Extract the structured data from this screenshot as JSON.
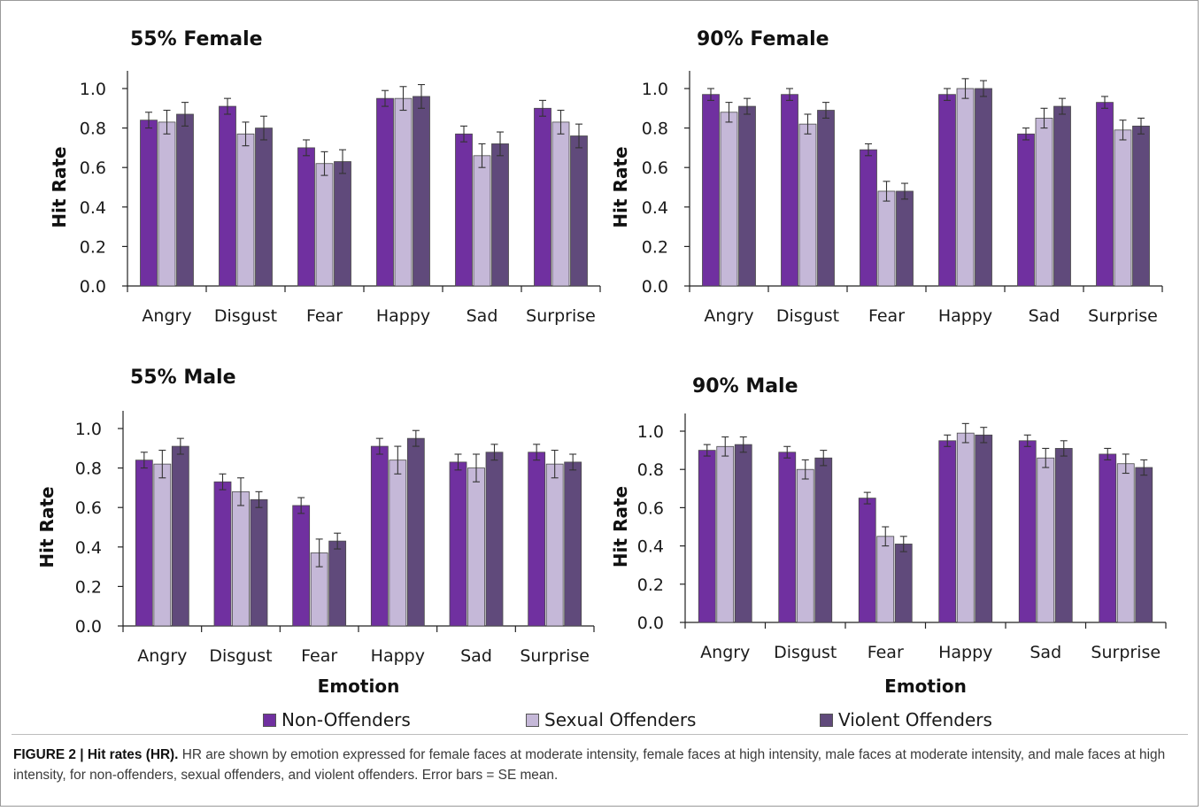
{
  "legend": [
    "Non-Offenders",
    "Sexual Offenders",
    "Violent Offenders"
  ],
  "colors": [
    "#7030a0",
    "#c5b8d8",
    "#604a7b"
  ],
  "caption": {
    "label": "FIGURE 2 | Hit rates (HR).",
    "text": " HR are shown by emotion expressed for female faces at moderate intensity, female faces at high intensity, male faces at moderate intensity, and male faces at high intensity, for non-offenders, sexual offenders, and violent offenders. Error bars = SE mean."
  },
  "chart_data": [
    {
      "type": "bar",
      "title": "55% Female",
      "xlabel": "",
      "ylabel": "Hit Rate",
      "ylim": [
        0,
        1.0
      ],
      "yticks": [
        "0.0",
        "0.2",
        "0.4",
        "0.6",
        "0.8",
        "1.0"
      ],
      "categories": [
        "Angry",
        "Disgust",
        "Fear",
        "Happy",
        "Sad",
        "Surprise"
      ],
      "series": [
        {
          "name": "Non-Offenders",
          "values": [
            0.84,
            0.91,
            0.7,
            0.95,
            0.77,
            0.9
          ],
          "errors": [
            0.04,
            0.04,
            0.04,
            0.04,
            0.04,
            0.04
          ]
        },
        {
          "name": "Sexual Offenders",
          "values": [
            0.83,
            0.77,
            0.62,
            0.95,
            0.66,
            0.83
          ],
          "errors": [
            0.06,
            0.06,
            0.06,
            0.06,
            0.06,
            0.06
          ]
        },
        {
          "name": "Violent Offenders",
          "values": [
            0.87,
            0.8,
            0.63,
            0.96,
            0.72,
            0.76
          ],
          "errors": [
            0.06,
            0.06,
            0.06,
            0.06,
            0.06,
            0.06
          ]
        }
      ]
    },
    {
      "type": "bar",
      "title": "90% Female",
      "xlabel": "",
      "ylabel": "Hit Rate",
      "ylim": [
        0,
        1.0
      ],
      "yticks": [
        "0.0",
        "0.2",
        "0.4",
        "0.6",
        "0.8",
        "1.0"
      ],
      "categories": [
        "Angry",
        "Disgust",
        "Fear",
        "Happy",
        "Sad",
        "Surprise"
      ],
      "series": [
        {
          "name": "Non-Offenders",
          "values": [
            0.97,
            0.97,
            0.69,
            0.97,
            0.77,
            0.93
          ],
          "errors": [
            0.03,
            0.03,
            0.03,
            0.03,
            0.03,
            0.03
          ]
        },
        {
          "name": "Sexual Offenders",
          "values": [
            0.88,
            0.82,
            0.48,
            1.0,
            0.85,
            0.79
          ],
          "errors": [
            0.05,
            0.05,
            0.05,
            0.05,
            0.05,
            0.05
          ]
        },
        {
          "name": "Violent Offenders",
          "values": [
            0.91,
            0.89,
            0.48,
            1.0,
            0.91,
            0.81
          ],
          "errors": [
            0.04,
            0.04,
            0.04,
            0.04,
            0.04,
            0.04
          ]
        }
      ]
    },
    {
      "type": "bar",
      "title": "55% Male",
      "xlabel": "Emotion",
      "ylabel": "Hit Rate",
      "ylim": [
        0,
        1.0
      ],
      "yticks": [
        "0.0",
        "0.2",
        "0.4",
        "0.6",
        "0.8",
        "1.0"
      ],
      "categories": [
        "Angry",
        "Disgust",
        "Fear",
        "Happy",
        "Sad",
        "Surprise"
      ],
      "series": [
        {
          "name": "Non-Offenders",
          "values": [
            0.84,
            0.73,
            0.61,
            0.91,
            0.83,
            0.88
          ],
          "errors": [
            0.04,
            0.04,
            0.04,
            0.04,
            0.04,
            0.04
          ]
        },
        {
          "name": "Sexual Offenders",
          "values": [
            0.82,
            0.68,
            0.37,
            0.84,
            0.8,
            0.82
          ],
          "errors": [
            0.07,
            0.07,
            0.07,
            0.07,
            0.07,
            0.07
          ]
        },
        {
          "name": "Violent Offenders",
          "values": [
            0.91,
            0.64,
            0.43,
            0.95,
            0.88,
            0.83
          ],
          "errors": [
            0.04,
            0.04,
            0.04,
            0.04,
            0.04,
            0.04
          ]
        }
      ]
    },
    {
      "type": "bar",
      "title": "90% Male",
      "xlabel": "Emotion",
      "ylabel": "Hit Rate",
      "ylim": [
        0,
        1.0
      ],
      "yticks": [
        "0.0",
        "0.2",
        "0.4",
        "0.6",
        "0.8",
        "1.0"
      ],
      "categories": [
        "Angry",
        "Disgust",
        "Fear",
        "Happy",
        "Sad",
        "Surprise"
      ],
      "series": [
        {
          "name": "Non-Offenders",
          "values": [
            0.9,
            0.89,
            0.65,
            0.95,
            0.95,
            0.88
          ],
          "errors": [
            0.03,
            0.03,
            0.03,
            0.03,
            0.03,
            0.03
          ]
        },
        {
          "name": "Sexual Offenders",
          "values": [
            0.92,
            0.8,
            0.45,
            0.99,
            0.86,
            0.83
          ],
          "errors": [
            0.05,
            0.05,
            0.05,
            0.05,
            0.05,
            0.05
          ]
        },
        {
          "name": "Violent Offenders",
          "values": [
            0.93,
            0.86,
            0.41,
            0.98,
            0.91,
            0.81
          ],
          "errors": [
            0.04,
            0.04,
            0.04,
            0.04,
            0.04,
            0.04
          ]
        }
      ]
    }
  ]
}
